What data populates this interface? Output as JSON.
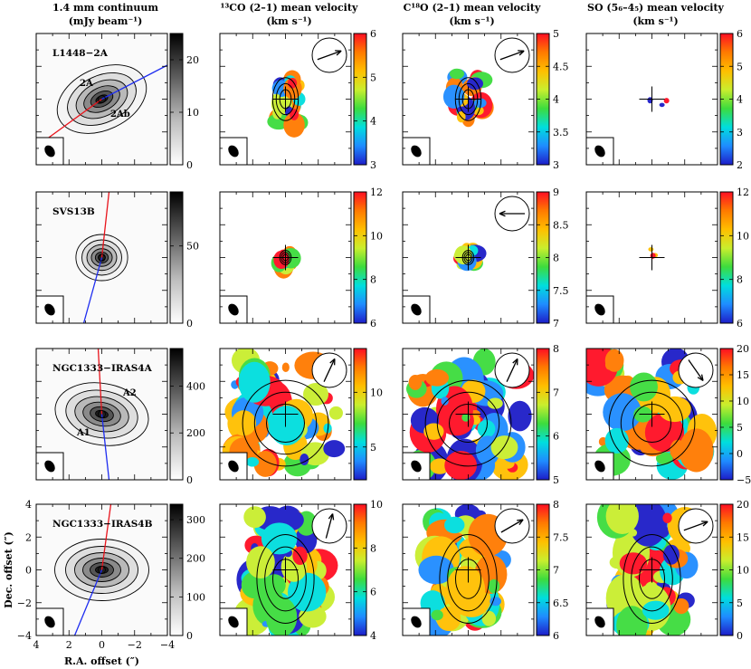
{
  "column_titles": [
    {
      "line1": "1.4 mm continuum",
      "line2": "(mJy beam⁻¹)"
    },
    {
      "line1": "¹³CO (2–1) mean velocity",
      "line2": "(km s⁻¹)"
    },
    {
      "line1": "C¹⁸O (2–1) mean velocity",
      "line2": "(km s⁻¹)"
    },
    {
      "line1": "SO (5₆–4₅) mean velocity",
      "line2": "(km s⁻¹)"
    }
  ],
  "row_labels": [
    "L1448−2A",
    "SVS13B",
    "NGC1333−IRAS4A",
    "NGC1333−IRAS4B"
  ],
  "source_annotations": [
    [
      "2A",
      "2Ab"
    ],
    [],
    [
      "A2",
      "A1"
    ],
    []
  ],
  "axes": {
    "xlabel": "R.A. offset (″)",
    "ylabel": "Dec. offset (″)",
    "x_ticks": [
      "4",
      "2",
      "0",
      "−2",
      "−4"
    ],
    "y_ticks": [
      "4",
      "2",
      "0",
      "−2",
      "−4"
    ]
  },
  "colors": {
    "velocity_colormap": [
      "#1d1dc8",
      "#1f8cff",
      "#00dede",
      "#3ddc3d",
      "#c9ee2e",
      "#ffbf00",
      "#ff7a00",
      "#ff0e23"
    ],
    "grayscale_colormap": [
      "#ffffff",
      "#bdbdbd",
      "#5e5e5e",
      "#000000"
    ],
    "outflow_red": "#e8131b",
    "outflow_blue": "#1d2cf0"
  },
  "chart_data": [
    {
      "type": "heatmap",
      "panel": "L1448-2A continuum",
      "colorbar": {
        "min": 0,
        "max": 25,
        "ticks": [
          0,
          10,
          20
        ]
      }
    },
    {
      "type": "heatmap",
      "panel": "L1448-2A 13CO",
      "colorbar": {
        "min": 3,
        "max": 6,
        "ticks": [
          3,
          4,
          5,
          6
        ]
      }
    },
    {
      "type": "heatmap",
      "panel": "L1448-2A C18O",
      "colorbar": {
        "min": 3,
        "max": 5,
        "ticks": [
          3,
          3.5,
          4,
          4.5,
          5
        ]
      }
    },
    {
      "type": "heatmap",
      "panel": "L1448-2A SO",
      "colorbar": {
        "min": 2,
        "max": 6,
        "ticks": [
          2,
          3,
          4,
          5,
          6
        ]
      }
    },
    {
      "type": "heatmap",
      "panel": "SVS13B continuum",
      "colorbar": {
        "min": 0,
        "max": 85,
        "ticks": [
          0,
          50
        ]
      }
    },
    {
      "type": "heatmap",
      "panel": "SVS13B 13CO",
      "colorbar": {
        "min": 6,
        "max": 12,
        "ticks": [
          6,
          8,
          10,
          12
        ]
      }
    },
    {
      "type": "heatmap",
      "panel": "SVS13B C18O",
      "colorbar": {
        "min": 7,
        "max": 9,
        "ticks": [
          7,
          7.5,
          8,
          8.5,
          9
        ]
      }
    },
    {
      "type": "heatmap",
      "panel": "SVS13B SO",
      "colorbar": {
        "min": 6,
        "max": 12,
        "ticks": [
          6,
          8,
          10,
          12
        ]
      }
    },
    {
      "type": "heatmap",
      "panel": "NGC1333-IRAS4A continuum",
      "colorbar": {
        "min": 0,
        "max": 560,
        "ticks": [
          0,
          200,
          400
        ]
      }
    },
    {
      "type": "heatmap",
      "panel": "NGC1333-IRAS4A 13CO",
      "colorbar": {
        "min": 2,
        "max": 14,
        "ticks": [
          5,
          10
        ]
      }
    },
    {
      "type": "heatmap",
      "panel": "NGC1333-IRAS4A C18O",
      "colorbar": {
        "min": 5,
        "max": 8,
        "ticks": [
          5,
          6,
          7,
          8
        ]
      }
    },
    {
      "type": "heatmap",
      "panel": "NGC1333-IRAS4A SO",
      "colorbar": {
        "min": -5,
        "max": 20,
        "ticks": [
          -5,
          0,
          5,
          10,
          15,
          20
        ]
      }
    },
    {
      "type": "heatmap",
      "panel": "NGC1333-IRAS4B continuum",
      "colorbar": {
        "min": 0,
        "max": 340,
        "ticks": [
          0,
          100,
          200,
          300
        ]
      }
    },
    {
      "type": "heatmap",
      "panel": "NGC1333-IRAS4B 13CO",
      "colorbar": {
        "min": 4,
        "max": 10,
        "ticks": [
          4,
          6,
          8,
          10
        ]
      }
    },
    {
      "type": "heatmap",
      "panel": "NGC1333-IRAS4B C18O",
      "colorbar": {
        "min": 6,
        "max": 8,
        "ticks": [
          6,
          6.5,
          7,
          7.5,
          8
        ]
      }
    },
    {
      "type": "heatmap",
      "panel": "NGC1333-IRAS4B SO",
      "colorbar": {
        "min": 0,
        "max": 20,
        "ticks": [
          0,
          5,
          10,
          15,
          20
        ]
      }
    }
  ]
}
